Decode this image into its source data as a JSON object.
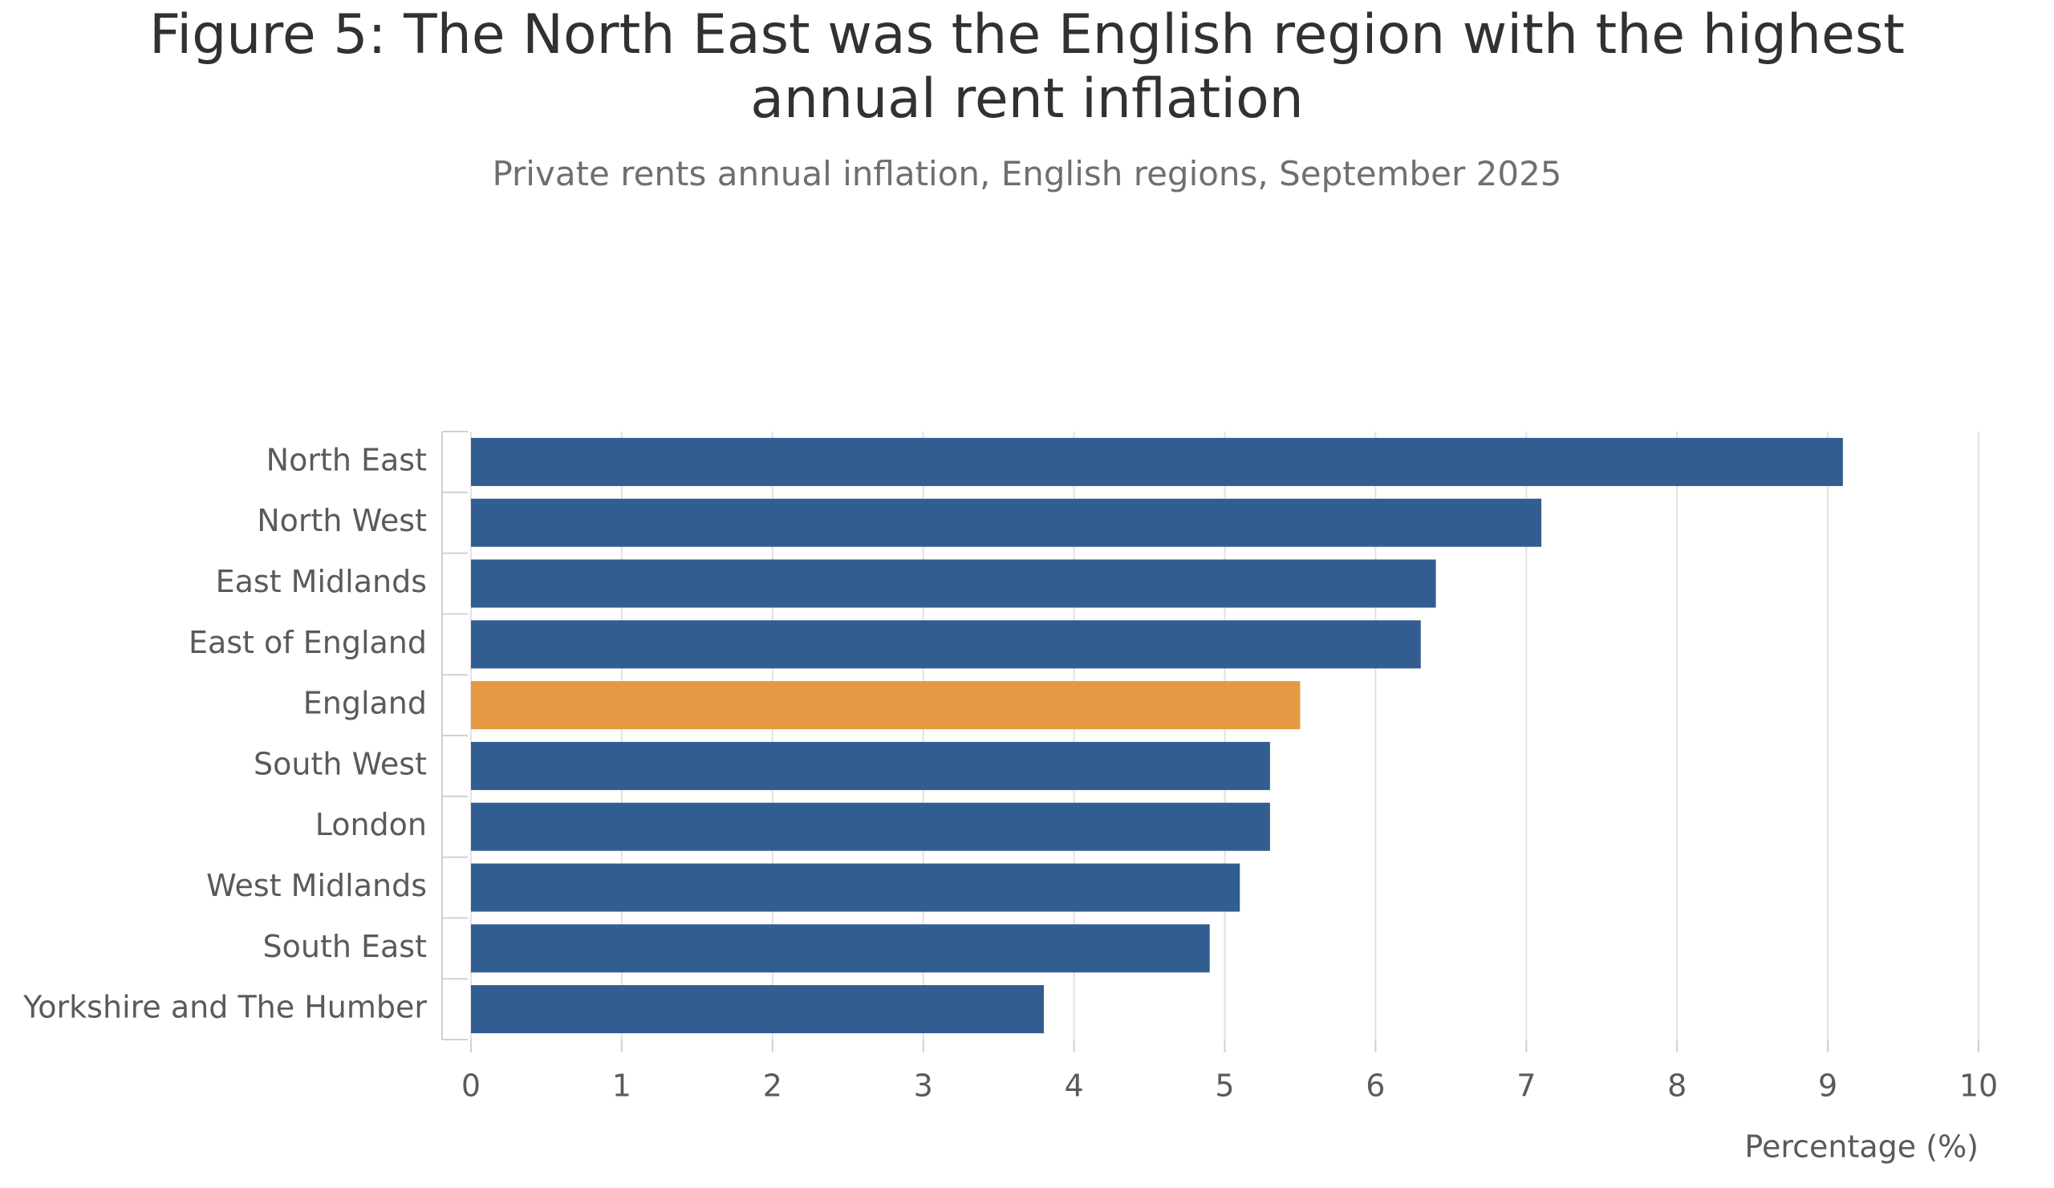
{
  "chart_data": {
    "type": "bar",
    "orientation": "horizontal",
    "title": "Figure 5: The North East was the English region with the highest annual rent inflation",
    "subtitle": "Private rents annual inflation, English regions, September 2025",
    "x_label": "Percentage (%)",
    "categories": [
      "North East",
      "North West",
      "East Midlands",
      "East of England",
      "England",
      "South West",
      "London",
      "West Midlands",
      "South East",
      "Yorkshire and The Humber"
    ],
    "values": [
      9.1,
      7.1,
      6.4,
      6.3,
      5.5,
      5.3,
      5.3,
      5.1,
      4.9,
      3.8
    ],
    "colors": [
      "#325d90",
      "#325d90",
      "#325d90",
      "#325d90",
      "#e69845",
      "#325d90",
      "#325d90",
      "#325d90",
      "#325d90",
      "#325d90"
    ],
    "xlim": [
      0,
      10
    ],
    "xticks": [
      0,
      1,
      2,
      3,
      4,
      5,
      6,
      7,
      8,
      9,
      10
    ],
    "grid": true
  }
}
